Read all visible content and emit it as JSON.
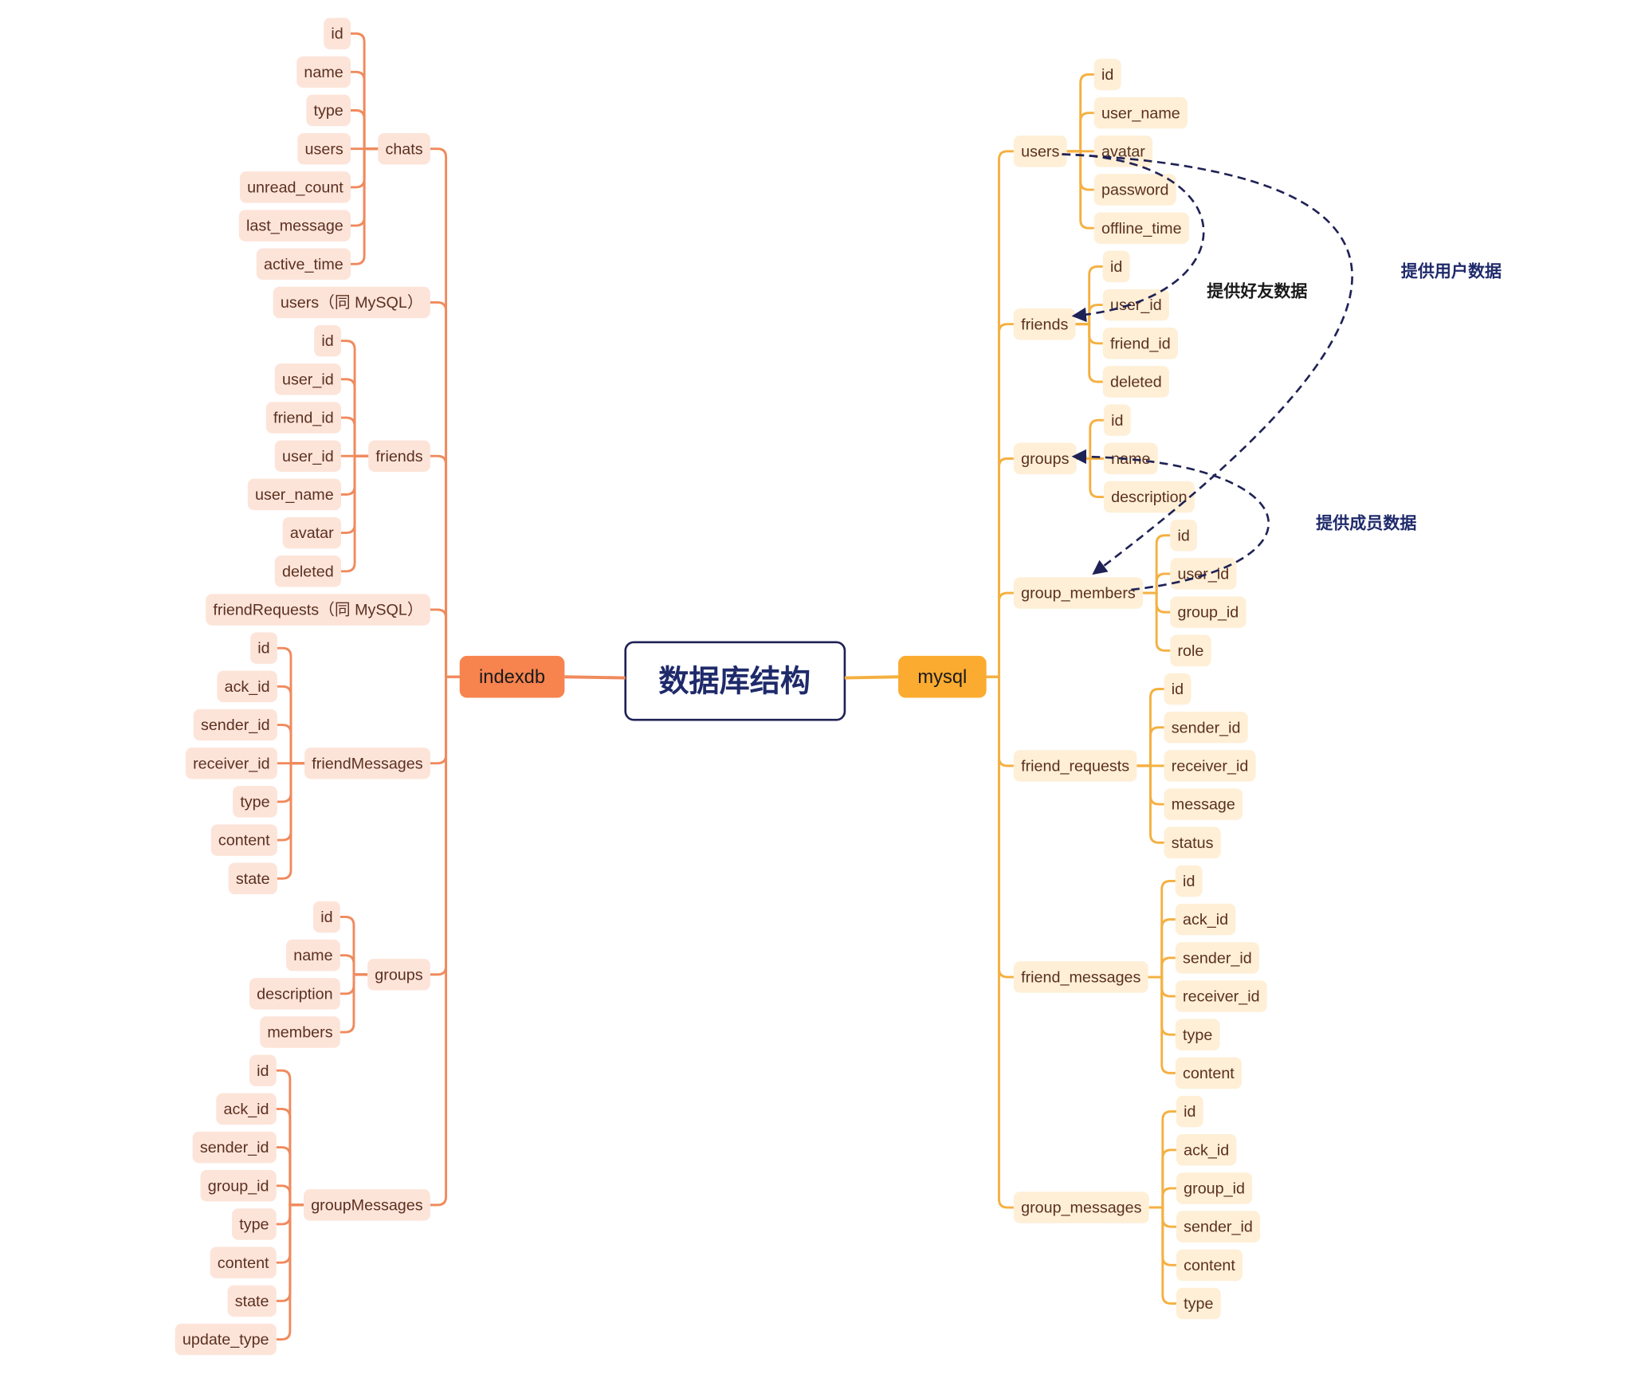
{
  "title": "数据库结构",
  "colors": {
    "left_line": "#f08a5d",
    "left_node_fill": "#fde4d9",
    "left_root_fill": "#f7834f",
    "right_line": "#f5b041",
    "right_node_fill": "#feefd6",
    "right_root_fill": "#fbab30",
    "node_text": "#5b3020",
    "center_border": "#1f2255",
    "center_text": "#1f2a6b",
    "annotation": "#1f2a6b"
  },
  "left": {
    "label": "indexdb",
    "tables": [
      {
        "name": "chats",
        "fields": [
          "id",
          "name",
          "type",
          "users",
          "unread_count",
          "last_message",
          "active_time"
        ]
      },
      {
        "name": "users（同 MySQL）",
        "fields": []
      },
      {
        "name": "friends",
        "fields": [
          "id",
          "user_id",
          "friend_id",
          "user_id",
          "user_name",
          "avatar",
          "deleted"
        ]
      },
      {
        "name": "friendRequests（同 MySQL）",
        "fields": []
      },
      {
        "name": "friendMessages",
        "fields": [
          "id",
          "ack_id",
          "sender_id",
          "receiver_id",
          "type",
          "content",
          "state"
        ]
      },
      {
        "name": "groups",
        "fields": [
          "id",
          "name",
          "description",
          "members"
        ]
      },
      {
        "name": "groupMessages",
        "fields": [
          "id",
          "ack_id",
          "sender_id",
          "group_id",
          "type",
          "content",
          "state",
          "update_type"
        ]
      }
    ]
  },
  "right": {
    "label": "mysql",
    "tables": [
      {
        "name": "users",
        "fields": [
          "id",
          "user_name",
          "avatar",
          "password",
          "offline_time"
        ]
      },
      {
        "name": "friends",
        "fields": [
          "id",
          "user_id",
          "friend_id",
          "deleted"
        ]
      },
      {
        "name": "groups",
        "fields": [
          "id",
          "name",
          "description"
        ]
      },
      {
        "name": "group_members",
        "fields": [
          "id",
          "user_id",
          "group_id",
          "role"
        ]
      },
      {
        "name": "friend_requests",
        "fields": [
          "id",
          "sender_id",
          "receiver_id",
          "message",
          "status"
        ]
      },
      {
        "name": "friend_messages",
        "fields": [
          "id",
          "ack_id",
          "sender_id",
          "receiver_id",
          "type",
          "content"
        ]
      },
      {
        "name": "group_messages",
        "fields": [
          "id",
          "ack_id",
          "group_id",
          "sender_id",
          "content",
          "type"
        ]
      }
    ]
  },
  "relations": [
    {
      "from": "users",
      "to": "friends",
      "label": "提供好友数据"
    },
    {
      "from": "users",
      "to": "group_members",
      "label": "提供用户数据"
    },
    {
      "from": "group_members",
      "to": "groups",
      "label": "提供成员数据"
    }
  ]
}
